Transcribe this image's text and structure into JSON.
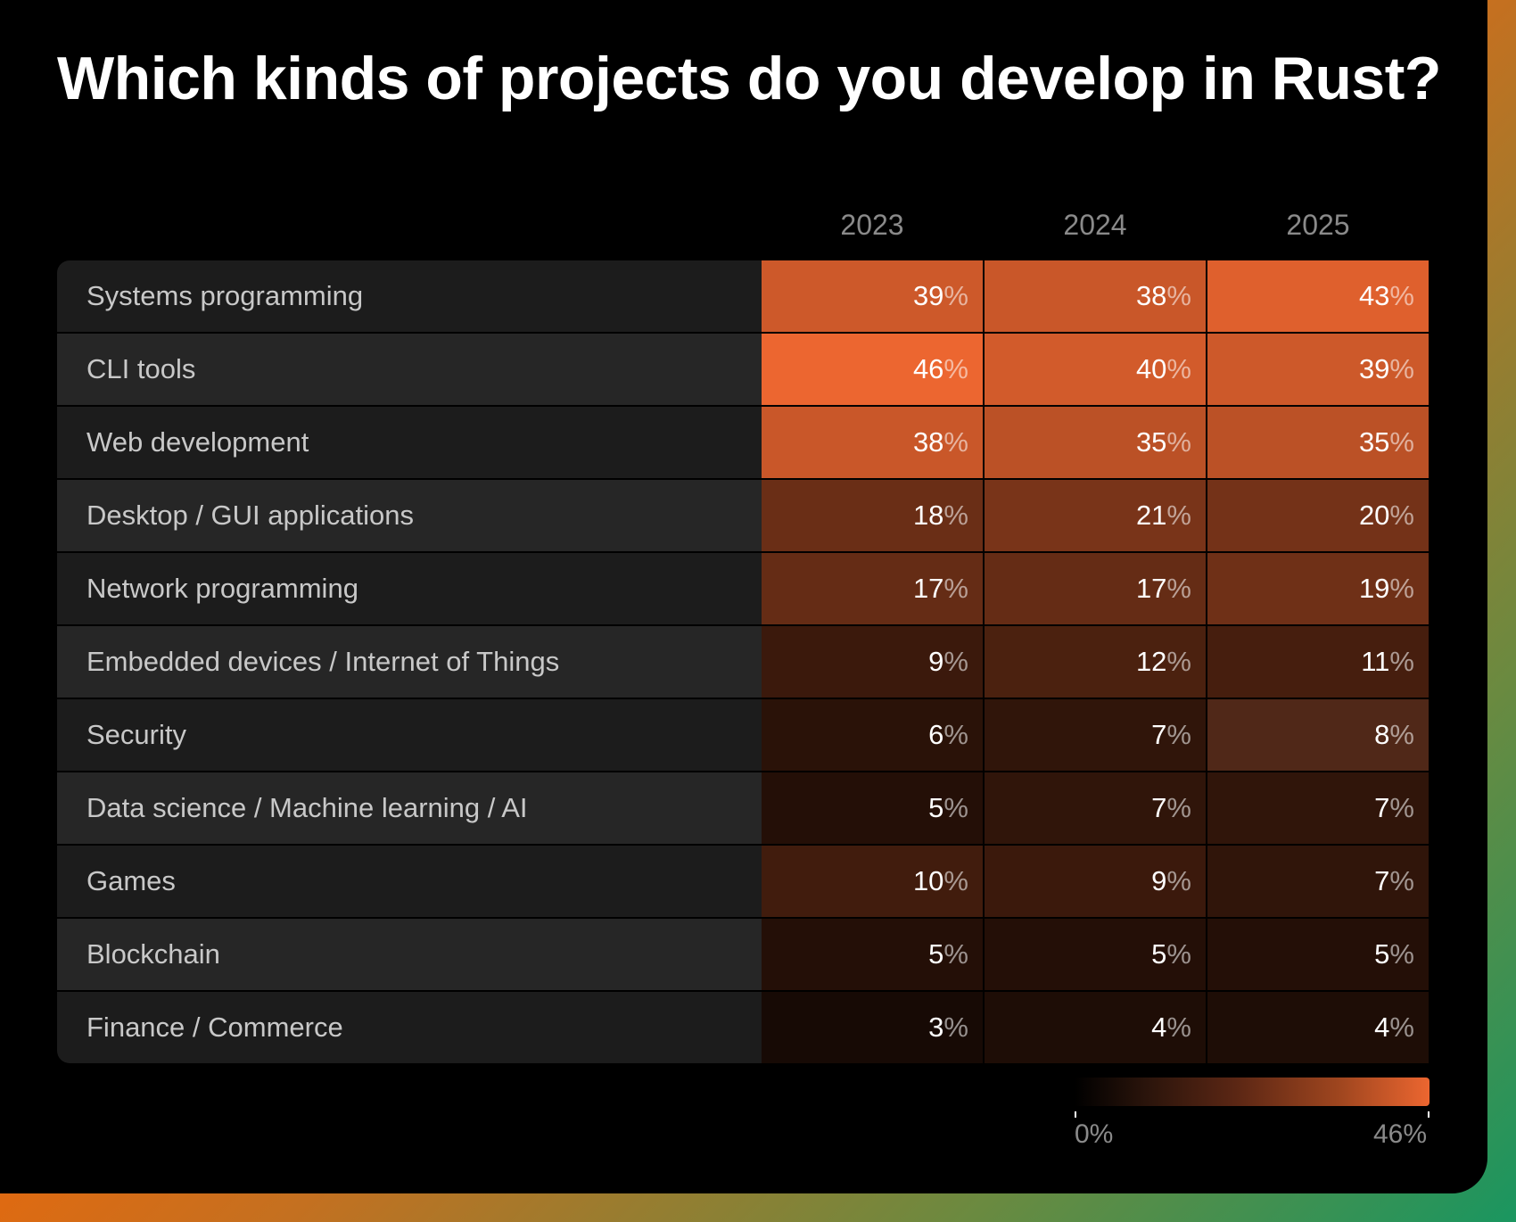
{
  "chart_data": {
    "type": "heatmap",
    "title": "Which kinds of projects do you develop in Rust?",
    "columns": [
      "2023",
      "2024",
      "2025"
    ],
    "rows": [
      {
        "label": "Systems programming",
        "values": [
          39,
          38,
          43
        ]
      },
      {
        "label": "CLI tools",
        "values": [
          46,
          40,
          39
        ]
      },
      {
        "label": "Web development",
        "values": [
          38,
          35,
          35
        ]
      },
      {
        "label": "Desktop / GUI applications",
        "values": [
          18,
          21,
          20
        ]
      },
      {
        "label": "Network programming",
        "values": [
          17,
          17,
          19
        ]
      },
      {
        "label": "Embedded devices / Internet of Things",
        "values": [
          9,
          12,
          11
        ]
      },
      {
        "label": "Security",
        "values": [
          6,
          7,
          8
        ]
      },
      {
        "label": "Data science / Machine learning / AI",
        "values": [
          5,
          7,
          7
        ]
      },
      {
        "label": "Games",
        "values": [
          10,
          9,
          7
        ]
      },
      {
        "label": "Blockchain",
        "values": [
          5,
          5,
          5
        ]
      },
      {
        "label": "Finance / Commerce",
        "values": [
          3,
          4,
          4
        ]
      }
    ],
    "unit": "%",
    "color_scale": {
      "min": 0,
      "max": 46,
      "min_label": "0%",
      "max_label": "46%",
      "min_color": "#000000",
      "max_color": "#ec6630"
    },
    "highlighted_cell": {
      "row": "Security",
      "column": "2025",
      "color": "#502818"
    }
  }
}
